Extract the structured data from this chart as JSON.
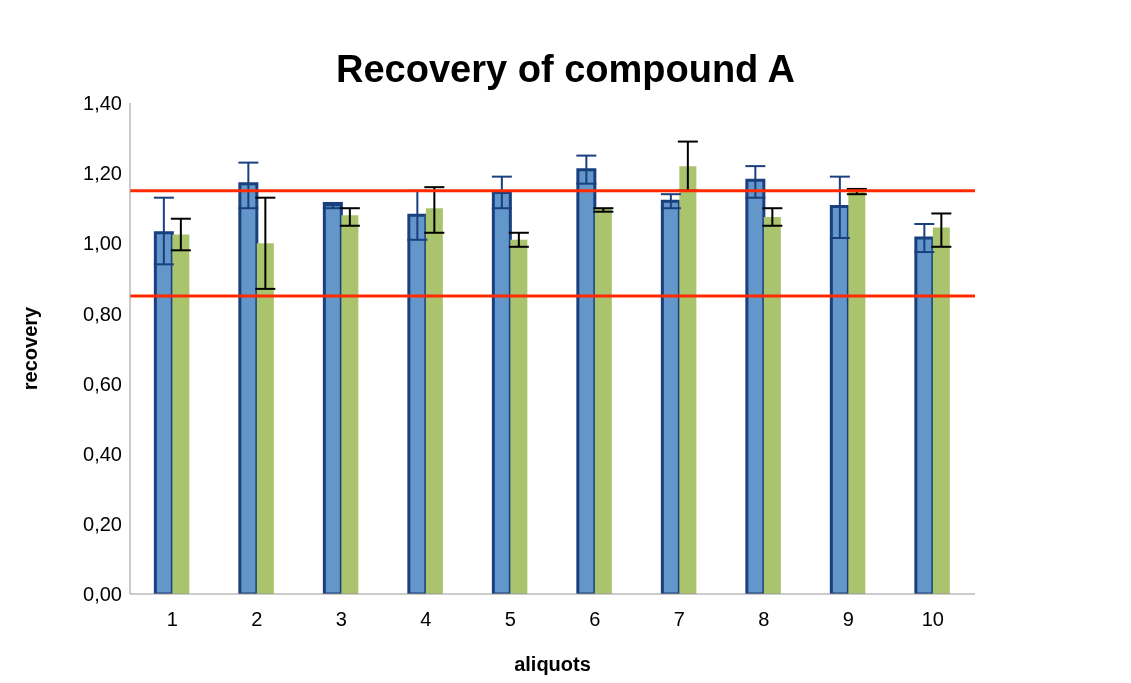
{
  "chart_data": {
    "type": "bar",
    "title": "Recovery of compound A",
    "xlabel": "aliquots",
    "ylabel": "recovery",
    "categories": [
      "1",
      "2",
      "3",
      "4",
      "5",
      "6",
      "7",
      "8",
      "9",
      "10"
    ],
    "series": [
      {
        "color": "#6396c9",
        "values": [
          1.03,
          1.17,
          1.11,
          1.08,
          1.145,
          1.21,
          1.12,
          1.18,
          1.105,
          1.015
        ],
        "errors": [
          [
            0.94,
            1.13
          ],
          [
            1.1,
            1.23
          ],
          [
            1.1,
            1.115
          ],
          [
            1.01,
            1.15
          ],
          [
            1.1,
            1.19
          ],
          [
            1.17,
            1.25
          ],
          [
            1.1,
            1.14
          ],
          [
            1.13,
            1.22
          ],
          [
            1.015,
            1.19
          ],
          [
            0.975,
            1.055
          ]
        ]
      },
      {
        "color": "#a9c46c",
        "values": [
          1.025,
          1.0,
          1.08,
          1.1,
          1.01,
          1.1,
          1.22,
          1.075,
          1.15,
          1.045
        ],
        "errors": [
          [
            0.98,
            1.07
          ],
          [
            0.87,
            1.13
          ],
          [
            1.05,
            1.1
          ],
          [
            1.03,
            1.16
          ],
          [
            0.99,
            1.03
          ],
          [
            1.09,
            1.1
          ],
          [
            1.15,
            1.29
          ],
          [
            1.05,
            1.1
          ],
          [
            1.14,
            1.155
          ],
          [
            0.99,
            1.085
          ]
        ]
      }
    ],
    "ylim": [
      0,
      1.4
    ],
    "yticks": [
      {
        "value": 0,
        "label": "0,00"
      },
      {
        "value": 0.2,
        "label": "0,20"
      },
      {
        "value": 0.4,
        "label": "0,40"
      },
      {
        "value": 0.6,
        "label": "0,60"
      },
      {
        "value": 0.8,
        "label": "0,80"
      },
      {
        "value": 1.0,
        "label": "1,00"
      },
      {
        "value": 1.2,
        "label": "1,20"
      },
      {
        "value": 1.4,
        "label": "1,40"
      }
    ],
    "ref_lines": [
      {
        "axis": "y",
        "value": 1.15,
        "color": "#ff2a00"
      },
      {
        "axis": "y",
        "value": 0.85,
        "color": "#ff2a00"
      }
    ],
    "grid": false,
    "legend": false
  }
}
